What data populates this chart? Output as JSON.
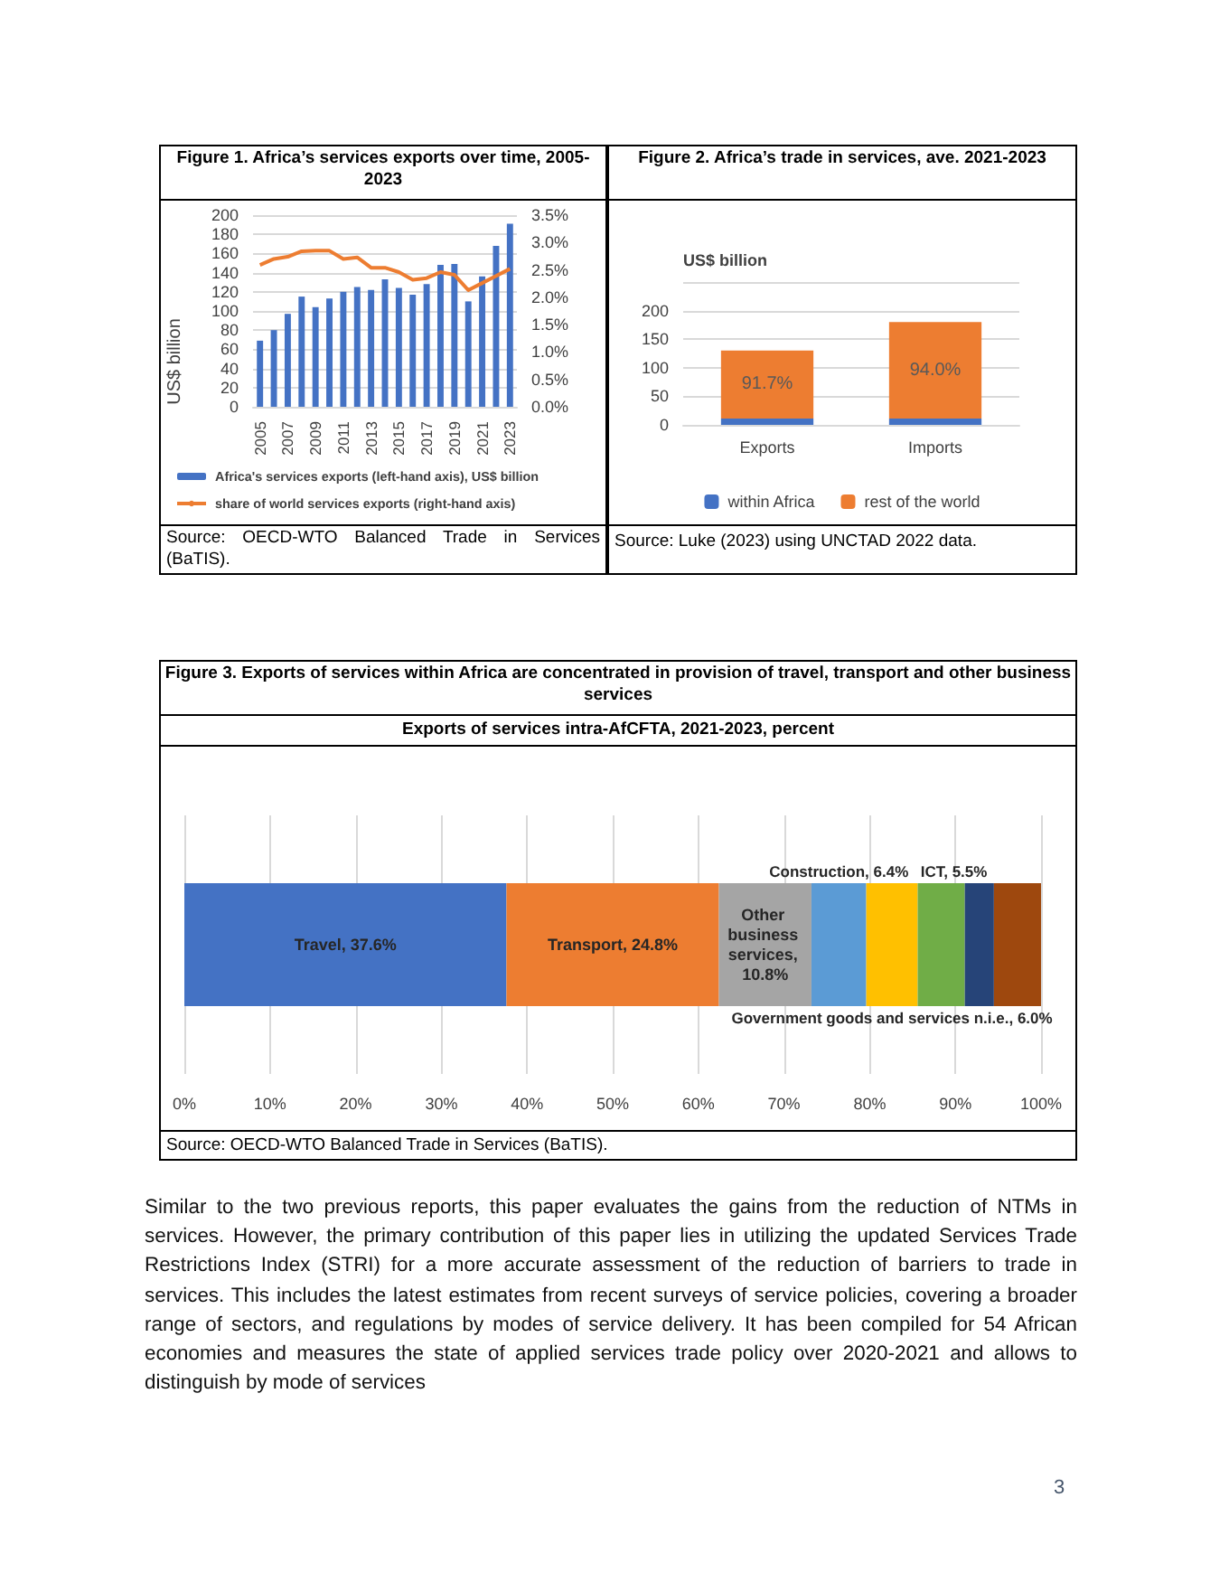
{
  "chart_data": [
    {
      "type": "bar",
      "title": "Figure 1. Africa’s services exports over time, 2005-2023",
      "ylabel": "US$ billion",
      "categories": [
        "2005",
        null,
        "2007",
        null,
        "2009",
        null,
        "2011",
        null,
        "2013",
        null,
        "2015",
        null,
        "2017",
        null,
        "2019",
        null,
        "2021",
        null,
        "2023"
      ],
      "series": [
        {
          "name": "Africa's services exports (left-hand axis), US$ billion",
          "color": "#4472c4",
          "values": [
            69,
            80,
            97,
            115,
            104,
            113,
            120,
            125,
            122,
            133,
            124,
            117,
            128,
            148,
            149,
            110,
            136,
            168,
            191
          ]
        },
        {
          "type": "line",
          "axis": "y2",
          "name": "share of world services exports (right-hand axis)",
          "color": "#ed7d31",
          "values": [
            2.59,
            2.7,
            2.74,
            2.84,
            2.85,
            2.85,
            2.7,
            2.73,
            2.54,
            2.54,
            2.46,
            2.32,
            2.35,
            2.46,
            2.41,
            2.13,
            2.26,
            2.39,
            2.52
          ]
        }
      ],
      "ylim": [
        0,
        200
      ],
      "yticks": [
        0,
        20,
        40,
        60,
        80,
        100,
        120,
        140,
        160,
        180,
        200
      ],
      "y2lim": [
        0,
        3.5
      ],
      "y2ticks": [
        {
          "value": 0,
          "label": "0.0%"
        },
        {
          "value": 0.5,
          "label": "0.5%"
        },
        {
          "value": 1,
          "label": "1.0%"
        },
        {
          "value": 1.5,
          "label": "1.5%"
        },
        {
          "value": 2,
          "label": "2.0%"
        },
        {
          "value": 2.5,
          "label": "2.5%"
        },
        {
          "value": 3,
          "label": "3.0%"
        },
        {
          "value": 3.5,
          "label": "3.5%"
        }
      ],
      "grid": "y",
      "legend": "bottom",
      "marker": "none",
      "annotations": [
        "Source: OECD-WTO Balanced Trade in Services (BaTIS)."
      ]
    },
    {
      "type": "bar",
      "title": "Figure 2. Africa’s trade in services, ave. 2021-2023",
      "ylabel": "US$ billion",
      "stacked": true,
      "categories": [
        "Exports",
        "Imports"
      ],
      "series": [
        {
          "name": "within Africa",
          "color": "#4472c4",
          "values": [
            11,
            11
          ]
        },
        {
          "name": "rest of the world",
          "color": "#ed7d31",
          "values": [
            119,
            169
          ]
        }
      ],
      "ylim": [
        0,
        250
      ],
      "yticks": [
        0,
        50,
        100,
        150,
        200,
        {
          "value": 250,
          "label": null
        }
      ],
      "grid": "y",
      "legend": "bottom",
      "annotations": [
        "Source: Luke (2023) using UNCTAD 2022 data.",
        "91.7%",
        "94.0%"
      ]
    },
    {
      "type": "bar",
      "title": "Figure 3. Exports of services within Africa are concentrated in provision of travel, transport and other business services",
      "subtitle": "Exports of services intra-AfCFTA, 2021-2023, percent",
      "orientation": "horizontal",
      "stacked": true,
      "categories": [
        null
      ],
      "series": [
        {
          "color": "#4472c4",
          "values": [
            37.6
          ],
          "value_labels": [
            "Travel, 37.6%"
          ]
        },
        {
          "color": "#ed7d31",
          "values": [
            24.8
          ],
          "value_labels": [
            "Transport, 24.8%"
          ]
        },
        {
          "color": "#a5a5a5",
          "values": [
            10.8
          ],
          "value_labels": [
            "Other business services, 10.8%"
          ]
        },
        {
          "color": "#5b9bd5",
          "values": [
            6.4
          ],
          "value_labels": [
            "Construction, 6.4%"
          ]
        },
        {
          "color": "#ffc000",
          "values": [
            6.0
          ],
          "value_labels": [
            "Government goods and services n.i.e., 6.0%"
          ]
        },
        {
          "color": "#70ad47",
          "values": [
            5.5
          ],
          "value_labels": [
            "ICT, 5.5%"
          ]
        },
        {
          "color": "#264478",
          "values": [
            3.4
          ]
        },
        {
          "color": "#9e480e",
          "values": [
            5.5
          ]
        }
      ],
      "xlim": [
        0,
        100
      ],
      "xticks": [
        {
          "value": 0,
          "label": "0%"
        },
        {
          "value": 10,
          "label": "10%"
        },
        {
          "value": 20,
          "label": "20%"
        },
        {
          "value": 30,
          "label": "30%"
        },
        {
          "value": 40,
          "label": "40%"
        },
        {
          "value": 50,
          "label": "50%"
        },
        {
          "value": 60,
          "label": "60%"
        },
        {
          "value": 70,
          "label": "70%"
        },
        {
          "value": 80,
          "label": "80%"
        },
        {
          "value": 90,
          "label": "90%"
        },
        {
          "value": 100,
          "label": "100%"
        }
      ],
      "grid": "x",
      "legend": false,
      "annotations": [
        "Source: OECD-WTO Balanced Trade in Services (BaTIS).",
        "Similar to the two previous reports, this paper evaluates the gains from the reduction of NTMs in services. However, the primary contribution of this paper lies in utilizing the updated Services Trade Restrictions Index (STRI) for a more accurate assessment of the reduction of barriers to trade in services. This includes the latest estimates from recent surveys of service policies, covering a broader range of sectors, and regulations by modes of service delivery. It has been compiled for 54 African economies and measures the state of applied services trade policy over 2020-2021 and allows to distinguish by mode of services",
        "3"
      ]
    }
  ]
}
